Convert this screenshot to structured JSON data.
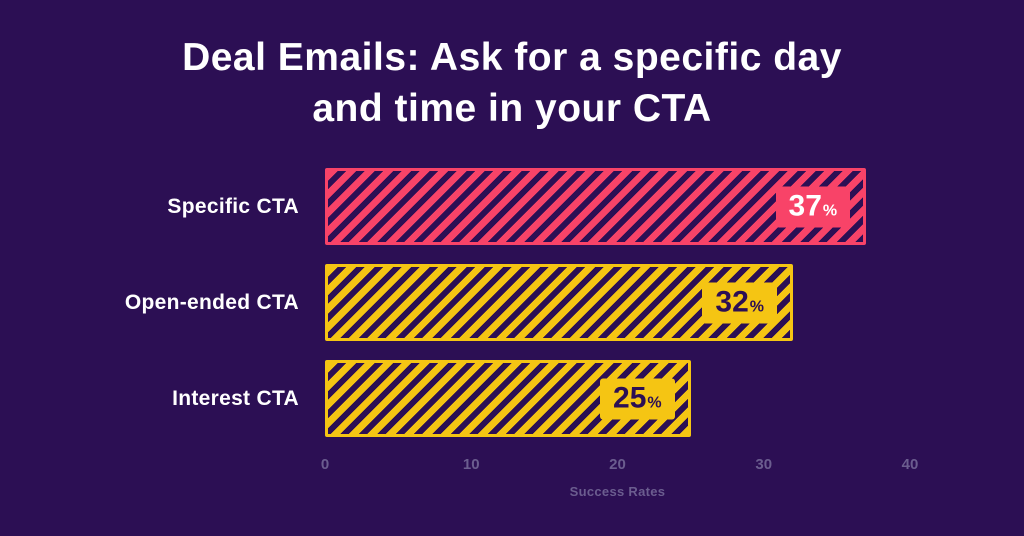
{
  "page": {
    "background_color": "#2c0f54"
  },
  "header": {
    "title_line1": "Deal Emails: Ask for a specific day",
    "title_line2": "and time in your CTA"
  },
  "chart_data": {
    "type": "bar",
    "orientation": "horizontal",
    "title": "Deal Emails: Ask for a specific day and time in your CTA",
    "categories": [
      "Specific CTA",
      "Open-ended CTA",
      "Interest CTA"
    ],
    "values": [
      37,
      32,
      25
    ],
    "value_suffix": "%",
    "xlabel": "Success Rates",
    "xlim": [
      0,
      40
    ],
    "xticks": [
      0,
      10,
      20,
      30,
      40
    ],
    "grid": false,
    "legend": false,
    "bar_style": "diagonal-hatch",
    "bar_colors": [
      "#f84368",
      "#f5c513",
      "#f5c513"
    ],
    "value_label_text_colors": [
      "#ffffff",
      "#2c0f54",
      "#2c0f54"
    ],
    "hatch_color": "#2c0f54",
    "axis_text_color": "#6b5d8f"
  }
}
